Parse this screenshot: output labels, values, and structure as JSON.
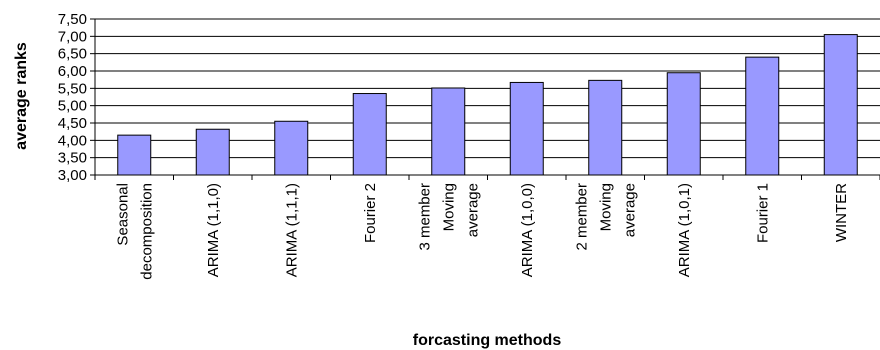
{
  "chart_data": {
    "type": "bar",
    "title": "",
    "xlabel": "forcasting methods",
    "ylabel": "average ranks",
    "ylim": [
      3.0,
      7.5
    ],
    "yticks": [
      "3,00",
      "3,50",
      "4,00",
      "4,50",
      "5,00",
      "5,50",
      "6,00",
      "6,50",
      "7,00",
      "7,50"
    ],
    "grid": true,
    "legend": "none",
    "bar_color": "#9999ff",
    "categories": [
      [
        "Seasonal",
        "decomposition"
      ],
      [
        "ARIMA (1,1,0)"
      ],
      [
        "ARIMA (1,1,1)"
      ],
      [
        "Fourier 2"
      ],
      [
        "3 member",
        "Moving",
        "average"
      ],
      [
        "ARIMA (1,0,0)"
      ],
      [
        "2 member",
        "Moving",
        "average"
      ],
      [
        "ARIMA (1,0,1)"
      ],
      [
        "Fourier 1"
      ],
      [
        "WINTER"
      ]
    ],
    "values": [
      4.15,
      4.32,
      4.55,
      5.35,
      5.51,
      5.67,
      5.73,
      5.95,
      6.4,
      7.05
    ]
  }
}
